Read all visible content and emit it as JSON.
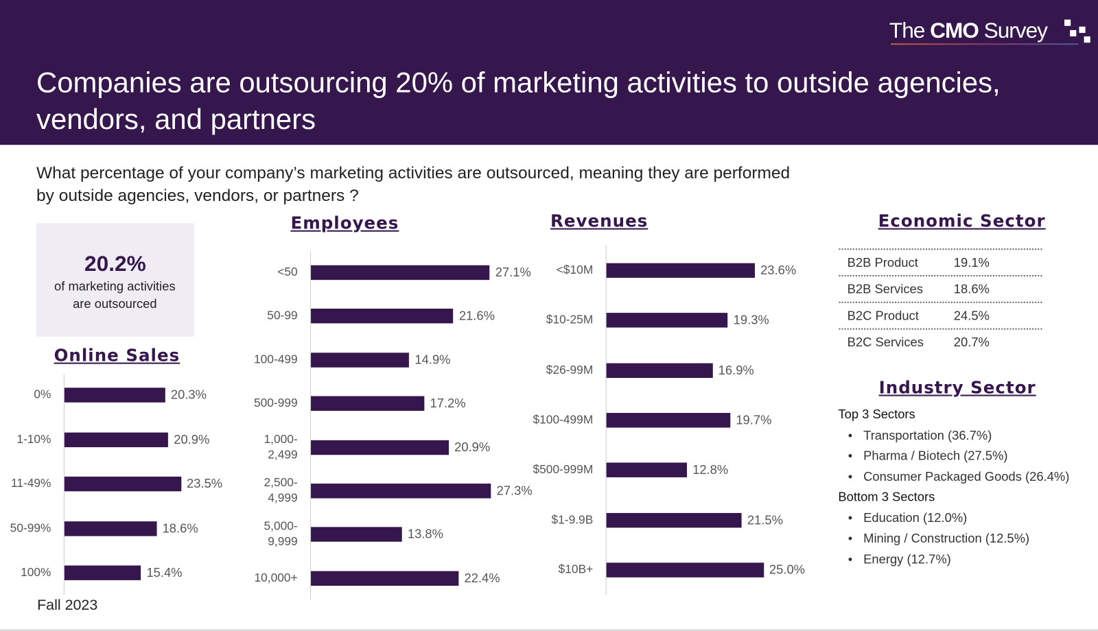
{
  "header": {
    "title": "Companies are outsourcing 20% of marketing activities to outside agencies, vendors, and partners",
    "logo": "The CMO Survey"
  },
  "question": "What percentage of your company’s marketing activities are outsourced, meaning they are performed by outside agencies, vendors, or partners ?",
  "kpi": {
    "value": "20.2%",
    "text": "of marketing activities are outsourced"
  },
  "footer": "Fall 2023",
  "colors": {
    "header_bg": "#35174d",
    "bar": "#35174d",
    "kpi_bg": "#efecf4"
  },
  "chart_data": [
    {
      "type": "bar",
      "orientation": "horizontal",
      "title": "Online Sales",
      "categories": [
        "0%",
        "1-10%",
        "11-49%",
        "50-99%",
        "100%"
      ],
      "values": [
        20.3,
        20.9,
        23.5,
        18.6,
        15.4
      ],
      "labels": [
        "20.3%",
        "20.9%",
        "23.5%",
        "18.6%",
        "15.4%"
      ]
    },
    {
      "type": "bar",
      "orientation": "horizontal",
      "title": "Employees",
      "categories": [
        "<50",
        "50-99",
        "100-499",
        "500-999",
        "1,000-\n2,499",
        "2,500-\n4,999",
        "5,000-\n9,999",
        "10,000+"
      ],
      "values": [
        27.1,
        21.6,
        14.9,
        17.2,
        20.9,
        27.3,
        13.8,
        22.4
      ],
      "labels": [
        "27.1%",
        "21.6%",
        "14.9%",
        "17.2%",
        "20.9%",
        "27.3%",
        "13.8%",
        "22.4%"
      ]
    },
    {
      "type": "bar",
      "orientation": "horizontal",
      "title": "Revenues",
      "categories": [
        "<$10M",
        "$10-25M",
        "$26-99M",
        "$100-499M",
        "$500-999M",
        "$1-9.9B",
        "$10B+"
      ],
      "values": [
        23.6,
        19.3,
        16.9,
        19.7,
        12.8,
        21.5,
        25.0
      ],
      "labels": [
        "23.6%",
        "19.3%",
        "16.9%",
        "19.7%",
        "12.8%",
        "21.5%",
        "25.0%"
      ]
    },
    {
      "type": "table",
      "title": "Economic Sector",
      "rows": [
        [
          "B2B Product",
          "19.1%"
        ],
        [
          "B2B Services",
          "18.6%"
        ],
        [
          "B2C Product",
          "24.5%"
        ],
        [
          "B2C Services",
          "20.7%"
        ]
      ]
    }
  ],
  "industry": {
    "title": "Industry Sector",
    "top_heading": "Top 3 Sectors",
    "top": [
      "Transportation (36.7%)",
      "Pharma / Biotech (27.5%)",
      "Consumer Packaged Goods (26.4%)"
    ],
    "bottom_heading": "Bottom 3 Sectors",
    "bottom": [
      "Education (12.0%)",
      "Mining / Construction (12.5%)",
      "Energy (12.7%)"
    ]
  }
}
